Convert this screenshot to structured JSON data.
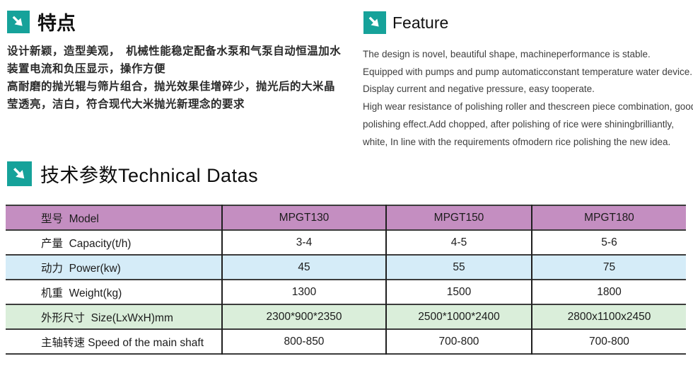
{
  "page": {
    "accent": "#16a29a"
  },
  "features_cn": {
    "title": "特点",
    "lines": [
      "设计新颖，造型美观，　机械性能稳定配备水泵和气泵自动恒温加水",
      "装置电流和负压显示，操作方便",
      "高耐磨的抛光辊与筛片组合，抛光效果佳增碎少，抛光后的大米晶",
      "莹透亮，洁白，符合现代大米抛光新理念的要求"
    ]
  },
  "features_en": {
    "title": "Feature",
    "lines": [
      "The design is novel, beautiful shape, machineperformance is stable.",
      "Equipped with pumps and pump automaticconstant temperature water device.",
      "Display current and negative pressure, easy tooperate.",
      "High wear resistance of polishing roller and thescreen piece combination, good",
      "polishing effect.Add chopped, after polishing of rice were shiningbrilliantly,",
      "white, In line with the requirements ofmodern rice polishing the new idea."
    ]
  },
  "tech": {
    "title": "技术参数Technical Datas",
    "table": {
      "header": [
        "型号  Model",
        "MPGT130",
        "MPGT150",
        "MPGT180"
      ],
      "header_bg": "#c48ec1",
      "row_colors": {
        "blue": "#d5ecf8",
        "green": "#daeeda",
        "white": "#ffffff"
      },
      "rows": [
        {
          "label": "产量  Capacity(t/h)",
          "values": [
            "3-4",
            "4-5",
            "5-6"
          ],
          "bg": "#ffffff"
        },
        {
          "label": "动力  Power(kw)",
          "values": [
            "45",
            "55",
            "75"
          ],
          "bg": "#d5ecf8"
        },
        {
          "label": "机重  Weight(kg)",
          "values": [
            "1300",
            "1500",
            "1800"
          ],
          "bg": "#ffffff"
        },
        {
          "label": "外形尺寸  Size(LxWxH)mm",
          "values": [
            "2300*900*2350",
            "2500*1000*2400",
            "2800x1100x2450"
          ],
          "bg": "#daeeda"
        },
        {
          "label": "主轴转速 Speed of the main shaft",
          "values": [
            "800-850",
            "700-800",
            "700-800"
          ],
          "bg": "#ffffff"
        }
      ]
    }
  }
}
